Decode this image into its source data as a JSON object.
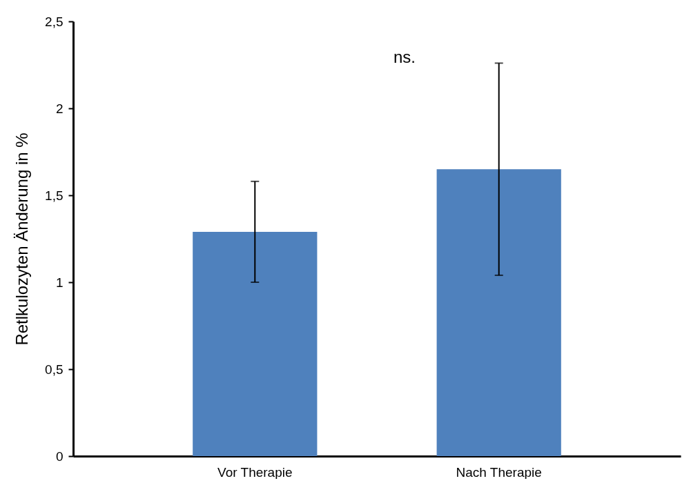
{
  "chart_data": {
    "type": "bar",
    "ylabel": "Retlkulozyten Änderung in %",
    "categories": [
      "Vor Therapie",
      "Nach Therapie"
    ],
    "values": [
      1.29,
      1.65
    ],
    "errors": [
      0.29,
      0.61
    ],
    "color": "#4f81bd",
    "ylim": [
      0,
      2.5
    ],
    "yticks": [
      0,
      {
        "value": 0.5,
        "label": "0,5"
      },
      1,
      {
        "value": 1.5,
        "label": "1,5"
      },
      2,
      {
        "value": 2.5,
        "label": "2,5"
      }
    ],
    "grid": false,
    "annotations": [
      "ns."
    ]
  }
}
